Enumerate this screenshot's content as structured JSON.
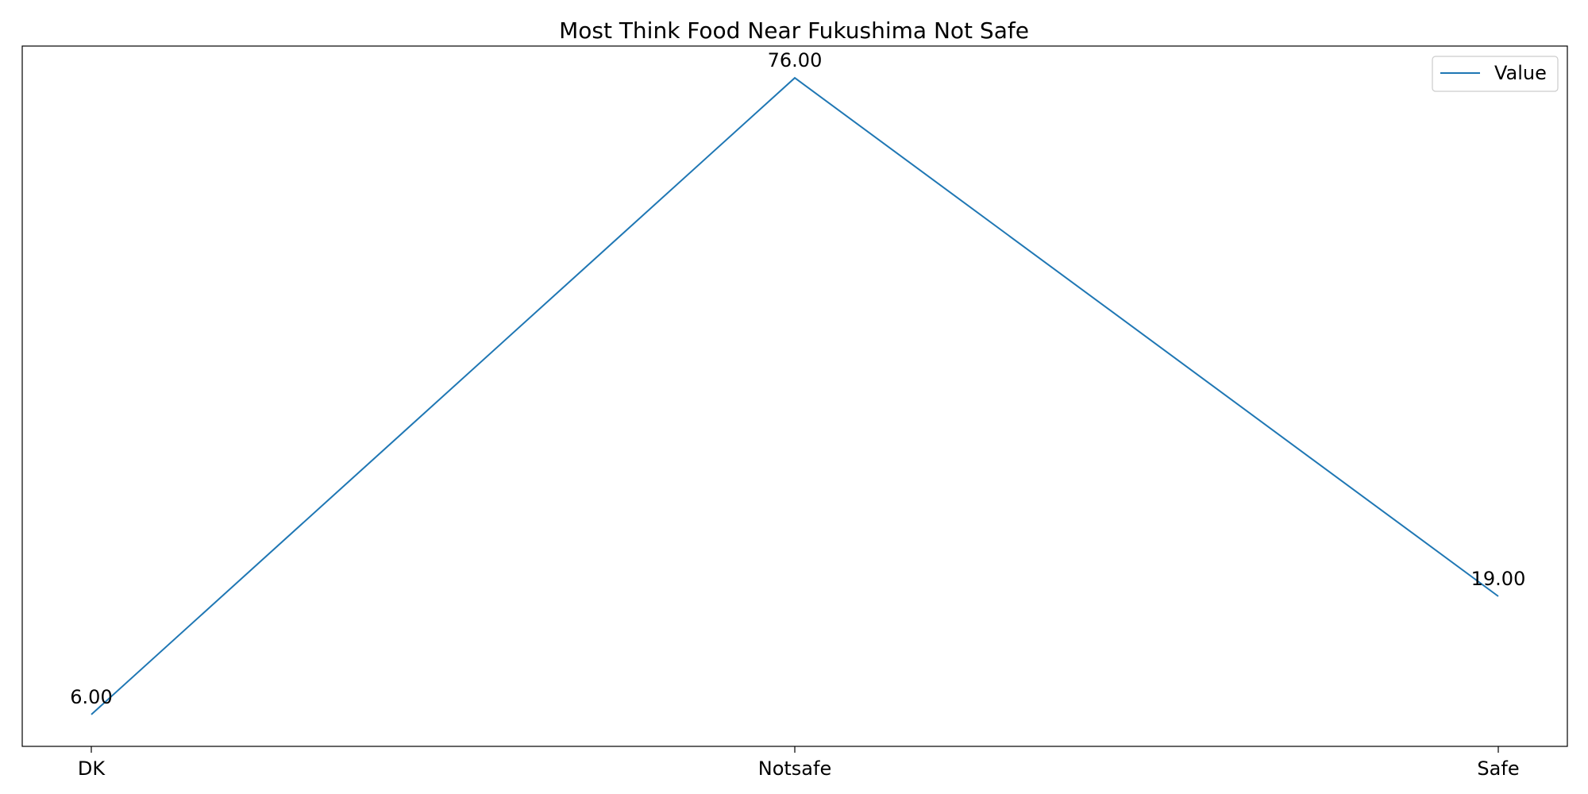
{
  "chart_data": {
    "type": "line",
    "title": "Most Think Food Near Fukushima Not Safe",
    "xlabel": "",
    "ylabel": "",
    "categories": [
      "DK",
      "Notsafe",
      "Safe"
    ],
    "series": [
      {
        "name": "Value",
        "values": [
          6,
          76,
          19
        ],
        "color": "#1f77b4"
      }
    ],
    "data_labels": [
      "6.00",
      "76.00",
      "19.00"
    ],
    "ylim": [
      2.5,
      79.5
    ],
    "y_ticks_visible": false,
    "grid": false,
    "legend": "top-right"
  }
}
